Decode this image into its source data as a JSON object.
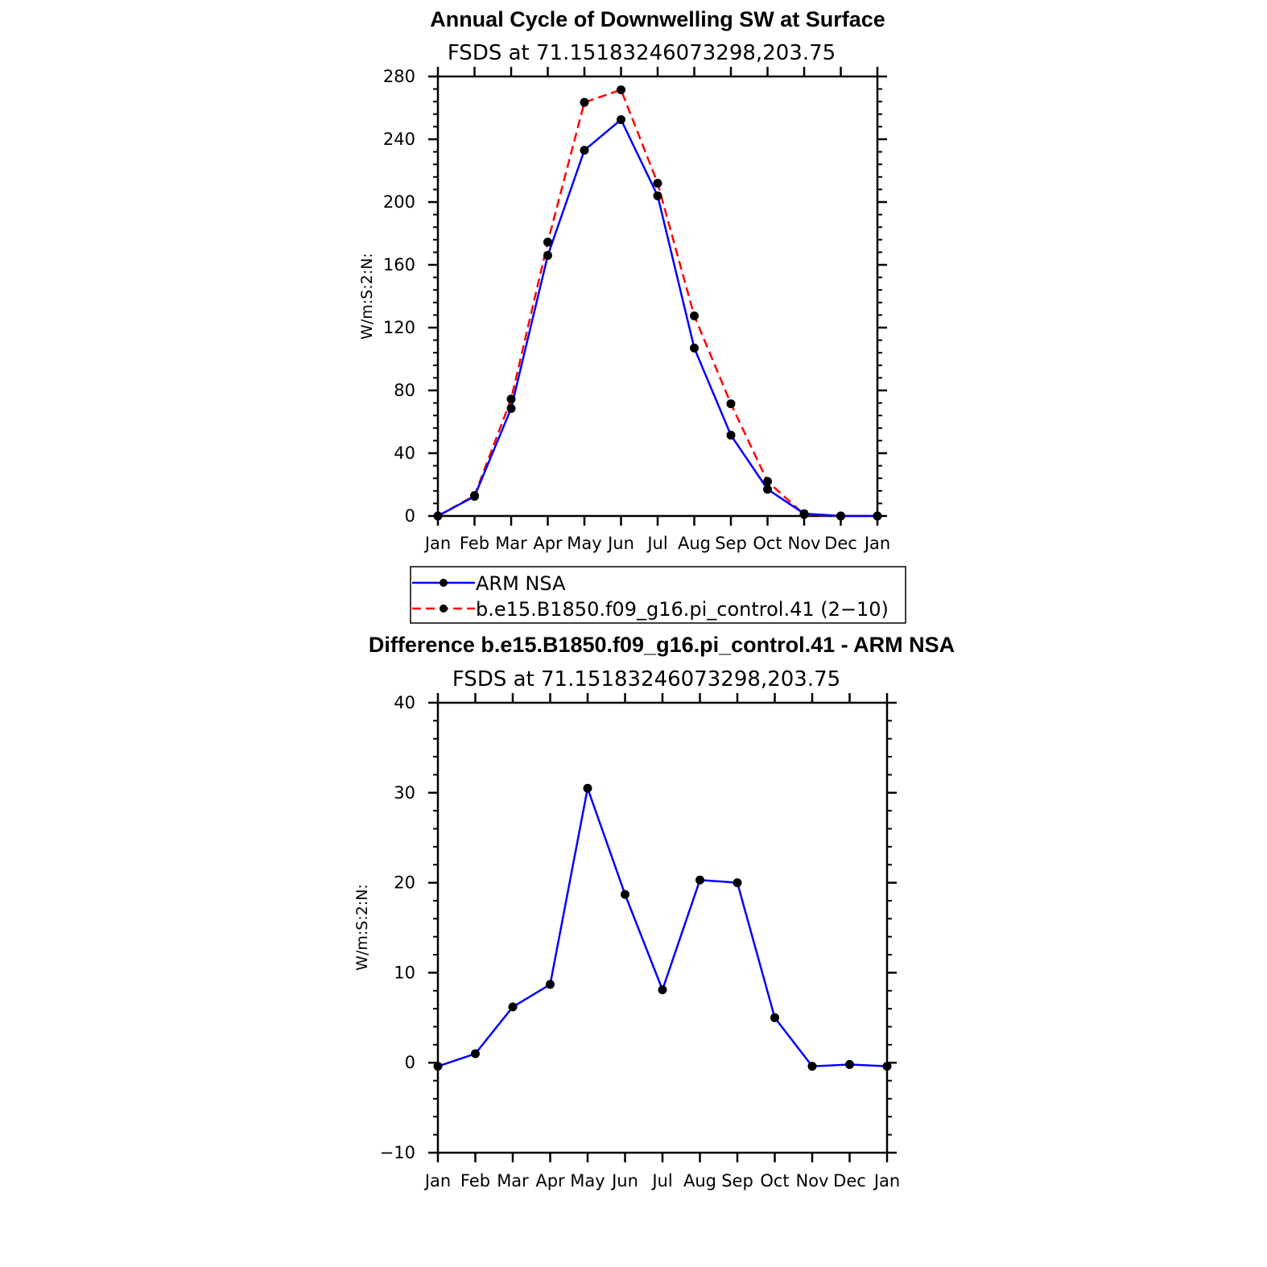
{
  "chart_data": [
    {
      "type": "line",
      "title": "Annual Cycle of Downwelling SW at Surface",
      "subtitle": "FSDS at 71.15183246073298,203.75",
      "ylabel": "W/m:S:2:N:",
      "xlabel": "",
      "categories": [
        "Jan",
        "Feb",
        "Mar",
        "Apr",
        "May",
        "Jun",
        "Jul",
        "Aug",
        "Sep",
        "Oct",
        "Nov",
        "Dec",
        "Jan"
      ],
      "ylim": [
        0,
        280
      ],
      "yticks": [
        "0",
        "40",
        "80",
        "120",
        "160",
        "200",
        "240",
        "280"
      ],
      "grid": false,
      "legend_position": "below",
      "series": [
        {
          "name": "ARM NSA",
          "color": "#0000ff",
          "dash": "solid",
          "values": [
            0,
            12.5,
            68.5,
            166,
            233,
            252.5,
            204,
            107,
            51.5,
            17,
            1.5,
            0,
            0
          ]
        },
        {
          "name": "b.e15.B1850.f09_g16.pi_control.41 (2−10)",
          "color": "#ff0000",
          "dash": "dashed",
          "values": [
            0,
            13,
            74.5,
            174.5,
            263.5,
            271.5,
            212,
            127.5,
            71.5,
            22,
            1,
            0,
            0
          ]
        }
      ],
      "marker_color": "#000000"
    },
    {
      "type": "line",
      "title": "Difference b.e15.B1850.f09_g16.pi_control.41 - ARM NSA",
      "subtitle": "FSDS at 71.15183246073298,203.75",
      "ylabel": "W/m:S:2:N:",
      "xlabel": "",
      "categories": [
        "Jan",
        "Feb",
        "Mar",
        "Apr",
        "May",
        "Jun",
        "Jul",
        "Aug",
        "Sep",
        "Oct",
        "Nov",
        "Dec",
        "Jan"
      ],
      "ylim": [
        -10,
        40
      ],
      "yticks": [
        "−10",
        "0",
        "10",
        "20",
        "30",
        "40"
      ],
      "grid": false,
      "series": [
        {
          "color": "#0000ff",
          "dash": "solid",
          "values": [
            -0.4,
            1.0,
            6.2,
            8.7,
            30.5,
            18.7,
            8.1,
            20.3,
            20.0,
            5.0,
            -0.4,
            -0.2,
            -0.4
          ]
        }
      ],
      "marker_color": "#000000"
    }
  ]
}
